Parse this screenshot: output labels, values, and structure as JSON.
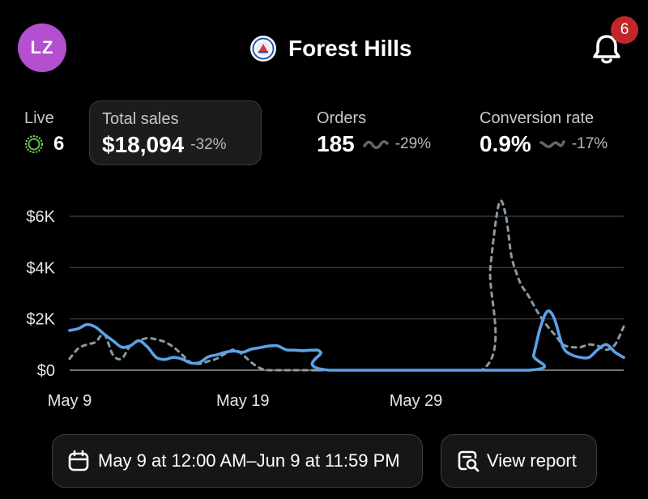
{
  "header": {
    "avatar_initials": "LZ",
    "store_name": "Forest Hills",
    "notification_count": "6",
    "avatar_color": "#b44fcf",
    "badge_color": "#c3262a"
  },
  "metrics": {
    "live": {
      "label": "Live",
      "value": "6"
    },
    "total_sales": {
      "label": "Total sales",
      "value": "$18,094",
      "change": "-32%"
    },
    "orders": {
      "label": "Orders",
      "value": "185",
      "change": "-29%"
    },
    "conversion": {
      "label": "Conversion rate",
      "value": "0.9%",
      "change": "-17%"
    }
  },
  "chart_data": {
    "type": "line",
    "y_ticks": [
      "$0",
      "$2K",
      "$4K",
      "$6K"
    ],
    "y_tick_values": [
      0,
      2000,
      4000,
      6000
    ],
    "ylim": [
      0,
      7000
    ],
    "x_tick_labels": [
      "May 9",
      "May 19",
      "May 29"
    ],
    "x_range": [
      "May 9",
      "Jun 9"
    ],
    "grid": true,
    "series": [
      {
        "style": "solid",
        "color": "#5aa2e6",
        "x": [
          0,
          0.5,
          1,
          1.5,
          2,
          2.5,
          3,
          3.5,
          4,
          4.5,
          5,
          5.5,
          6,
          6.5,
          7,
          7.5,
          8,
          8.5,
          9,
          9.5,
          10,
          10.5,
          11,
          11.5,
          12,
          12.5,
          13,
          13.5,
          14,
          14.5,
          15,
          26.5,
          26.8,
          27.2,
          27.6,
          28,
          28.5,
          29,
          29.5,
          30,
          30.5,
          31,
          31.5,
          32
        ],
        "y": [
          1550,
          1620,
          1780,
          1680,
          1400,
          1150,
          900,
          950,
          1150,
          900,
          500,
          420,
          500,
          430,
          280,
          300,
          520,
          600,
          700,
          750,
          700,
          820,
          880,
          940,
          950,
          800,
          780,
          760,
          780,
          700,
          0,
          0,
          600,
          1700,
          2300,
          2000,
          900,
          600,
          500,
          500,
          800,
          1000,
          700,
          500
        ]
      },
      {
        "style": "dashed",
        "color": "#8a9aa2",
        "x": [
          0,
          0.5,
          1,
          1.5,
          2,
          2.5,
          3,
          3.5,
          4,
          4.5,
          5,
          5.5,
          6,
          6.5,
          7,
          7.5,
          8,
          8.5,
          9,
          9.5,
          10,
          10.5,
          11,
          11.5,
          12,
          12.5,
          13,
          13.5,
          14,
          14.5,
          15,
          23.8,
          24.3,
          24.8,
          25.2,
          25.5,
          25.8,
          26.1,
          26.5,
          27,
          27.5,
          28,
          28.5,
          29,
          29.5,
          30,
          30.5,
          31,
          31.5,
          32
        ],
        "y": [
          450,
          850,
          1000,
          1100,
          1400,
          600,
          450,
          950,
          1150,
          1250,
          1200,
          1100,
          900,
          600,
          300,
          250,
          350,
          450,
          650,
          800,
          600,
          300,
          80,
          0,
          0,
          0,
          0,
          0,
          0,
          0,
          0,
          0,
          4000,
          6500,
          6000,
          4500,
          3800,
          3300,
          2900,
          2300,
          1800,
          1400,
          1000,
          900,
          900,
          1000,
          950,
          800,
          1000,
          1700
        ]
      }
    ]
  },
  "footer": {
    "date_range": "May 9 at 12:00 AM–Jun 9 at 11:59 PM",
    "view_report": "View report"
  }
}
